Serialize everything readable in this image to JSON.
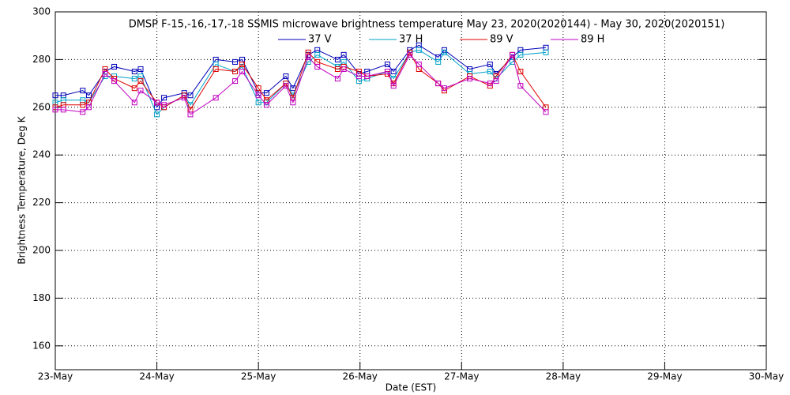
{
  "chart_data": {
    "type": "line",
    "title": "DMSP F-15,-16,-17,-18 SSMIS microwave brightness temperature May 23, 2020(2020144) - May 30, 2020(2020151)",
    "x_label": "Date (EST)",
    "y_label": "Brightness Temperature, Deg K",
    "x": [
      0,
      0.08,
      0.27,
      0.33,
      0.49,
      0.58,
      0.78,
      0.84,
      1.0,
      1.07,
      1.27,
      1.33,
      1.58,
      1.77,
      1.84,
      2.0,
      2.08,
      2.27,
      2.34,
      2.49,
      2.58,
      2.78,
      2.84,
      2.99,
      3.07,
      3.27,
      3.33,
      3.49,
      3.58,
      3.77,
      3.83,
      4.08,
      4.28,
      4.34,
      4.5,
      4.58,
      4.83
    ],
    "xlim": [
      0,
      7
    ],
    "xticks": [
      {
        "value": 0,
        "label": "23-May"
      },
      {
        "value": 1,
        "label": "24-May"
      },
      {
        "value": 2,
        "label": "25-May"
      },
      {
        "value": 3,
        "label": "26-May"
      },
      {
        "value": 4,
        "label": "27-May"
      },
      {
        "value": 5,
        "label": "28-May"
      },
      {
        "value": 6,
        "label": "29-May"
      },
      {
        "value": 7,
        "label": "30-May"
      }
    ],
    "ylim": [
      150,
      300
    ],
    "yticks": [
      160,
      180,
      200,
      220,
      240,
      260,
      280,
      300
    ],
    "grid": true,
    "legend": "top",
    "series": [
      {
        "name": "37 V",
        "color": "#0000b8",
        "values": [
          265,
          265,
          267,
          265,
          275,
          277,
          275,
          276,
          260,
          264,
          266,
          265,
          280,
          279,
          280,
          266,
          266,
          273,
          268,
          282,
          284,
          280,
          282,
          274,
          275,
          278,
          275,
          284,
          286,
          281,
          284,
          276,
          278,
          274,
          281,
          284,
          285
        ]
      },
      {
        "name": "37 H",
        "color": "#00a0c8",
        "values": [
          262,
          263,
          263,
          262,
          273,
          273,
          272,
          273,
          257,
          260,
          265,
          261,
          278,
          275,
          277,
          262,
          262,
          270,
          265,
          279,
          282,
          277,
          279,
          271,
          272,
          275,
          272,
          283,
          284,
          279,
          283,
          274,
          275,
          272,
          279,
          282,
          283
        ]
      },
      {
        "name": "89 V",
        "color": "#e00000",
        "values": [
          260,
          261,
          261,
          262,
          276,
          272,
          268,
          271,
          262,
          260,
          265,
          259,
          276,
          275,
          278,
          268,
          263,
          270,
          264,
          283,
          279,
          276,
          277,
          275,
          273,
          274,
          270,
          283,
          276,
          270,
          267,
          273,
          269,
          273,
          282,
          275,
          260
        ]
      },
      {
        "name": "89 H",
        "color": "#c000c0",
        "values": [
          259,
          259,
          258,
          260,
          274,
          271,
          262,
          267,
          262,
          261,
          264,
          257,
          264,
          271,
          275,
          265,
          261,
          269,
          262,
          281,
          277,
          272,
          276,
          273,
          273,
          275,
          269,
          282,
          278,
          270,
          268,
          272,
          270,
          271,
          282,
          269,
          258
        ]
      }
    ]
  }
}
